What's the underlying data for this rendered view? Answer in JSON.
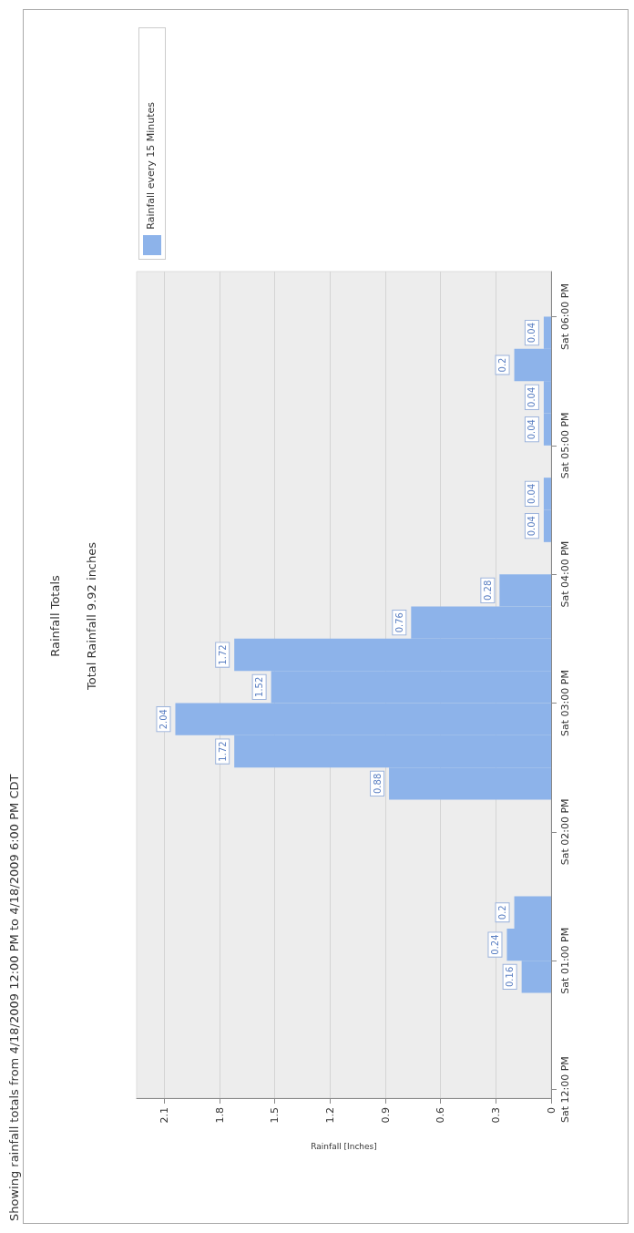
{
  "chart_data": {
    "type": "histogram",
    "orientation": "horizontal",
    "title": "Rainfall Totals",
    "subtitle": "Total Rainfall 9.92 inches",
    "xlabel": "Rainfall [Inches]",
    "annotations": [
      "Showing rainfall totals from 4/18/2009 12:00 PM to 4/18/2009 6:00 PM CDT"
    ],
    "bins": [
      "2009-04-18T12:45",
      "2009-04-18T13:00",
      "2009-04-18T13:15",
      "2009-04-18T13:30",
      "2009-04-18T13:45",
      "2009-04-18T14:00",
      "2009-04-18T14:15",
      "2009-04-18T14:30",
      "2009-04-18T14:45",
      "2009-04-18T15:00",
      "2009-04-18T15:15",
      "2009-04-18T15:30",
      "2009-04-18T15:45",
      "2009-04-18T16:00",
      "2009-04-18T16:15",
      "2009-04-18T16:30",
      "2009-04-18T16:45",
      "2009-04-18T17:00",
      "2009-04-18T17:15",
      "2009-04-18T17:30",
      "2009-04-18T17:45",
      "2009-04-18T18:00"
    ],
    "series": [
      {
        "name": "Rainfall every 15 Minutes",
        "color": "#8db3ea",
        "values": [
          0.16,
          0.24,
          0.2,
          0,
          0,
          0,
          0.88,
          1.72,
          2.04,
          1.52,
          1.72,
          0.76,
          0.28,
          0,
          0.04,
          0.04,
          0,
          0.04,
          0.04,
          0.2,
          0.04
        ],
        "value_labels": [
          "0.16",
          "0.24",
          "0.2",
          null,
          null,
          null,
          "0.88",
          "1.72",
          "2.04",
          "1.52",
          "1.72",
          "0.76",
          "0.28",
          null,
          "0.04",
          "0.04",
          null,
          "0.04",
          "0.04",
          "0.2",
          "0.04"
        ]
      }
    ],
    "xlim": [
      2.25,
      0
    ],
    "xticks": [
      0,
      0.3,
      0.6,
      0.9,
      1.2,
      1.5,
      1.8,
      2.1
    ],
    "ylim": [
      "2009-04-18T11:56",
      "2009-04-18T18:21"
    ],
    "yticks": [
      {
        "value": "2009-04-18T12:00",
        "label": "Sat 12:00 PM"
      },
      {
        "value": "2009-04-18T13:00",
        "label": "Sat 01:00 PM"
      },
      {
        "value": "2009-04-18T14:00",
        "label": "Sat 02:00 PM"
      },
      {
        "value": "2009-04-18T15:00",
        "label": "Sat 03:00 PM"
      },
      {
        "value": "2009-04-18T16:00",
        "label": "Sat 04:00 PM"
      },
      {
        "value": "2009-04-18T17:00",
        "label": "Sat 05:00 PM"
      },
      {
        "value": "2009-04-18T18:00",
        "label": "Sat 06:00 PM"
      }
    ],
    "grid": "x",
    "legend": "top left"
  }
}
